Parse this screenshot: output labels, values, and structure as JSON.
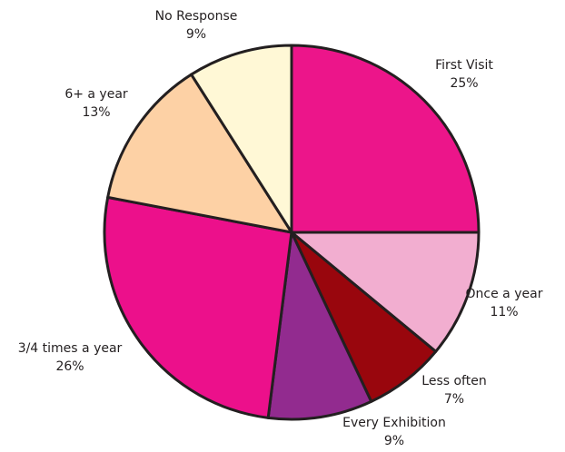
{
  "chart_data": {
    "type": "pie",
    "title": "",
    "slices": [
      {
        "label": "First Visit",
        "value": 25,
        "value_label": "25%",
        "color": "#ec158a"
      },
      {
        "label": "Once a year",
        "value": 11,
        "value_label": "11%",
        "color": "#f2aed0"
      },
      {
        "label": "Less often",
        "value": 7,
        "value_label": "7%",
        "color": "#99060d"
      },
      {
        "label": "Every Exhibition",
        "value": 9,
        "value_label": "9%",
        "color": "#922b8f"
      },
      {
        "label": "3/4 times a year",
        "value": 26,
        "value_label": "26%",
        "color": "#ec108b"
      },
      {
        "label": "6+ a year",
        "value": 13,
        "value_label": "13%",
        "color": "#fdd1a5"
      },
      {
        "label": "No Response",
        "value": 9,
        "value_label": "9%",
        "color": "#fff8d6"
      }
    ],
    "start_angle_deg": 0,
    "direction": "clockwise",
    "legend": "none"
  }
}
